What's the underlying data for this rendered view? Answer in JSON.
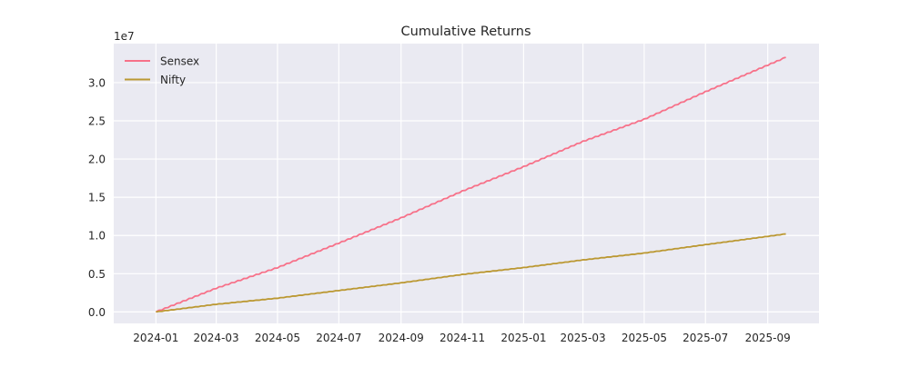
{
  "chart_data": {
    "type": "line",
    "title": "Cumulative Returns",
    "xlabel": "",
    "ylabel": "",
    "y_scale_label": "1e7",
    "x_tick_labels": [
      "2024-01",
      "2024-03",
      "2024-05",
      "2024-07",
      "2024-09",
      "2024-11",
      "2025-01",
      "2025-03",
      "2025-05",
      "2025-07",
      "2025-09"
    ],
    "y_tick_labels": [
      "0.0",
      "0.5",
      "1.0",
      "1.5",
      "2.0",
      "2.5",
      "3.0"
    ],
    "xlim": [
      "2023-11-20",
      "2025-10-22"
    ],
    "ylim": [
      -1500000,
      35100000
    ],
    "grid": true,
    "legend_position": "top-left",
    "series": [
      {
        "name": "Sensex",
        "color": "#f77189",
        "points": [
          [
            "2024-01-01",
            0
          ],
          [
            "2024-03-01",
            3100000
          ],
          [
            "2024-05-01",
            5800000
          ],
          [
            "2024-07-01",
            9000000
          ],
          [
            "2024-09-01",
            12300000
          ],
          [
            "2024-11-01",
            15800000
          ],
          [
            "2025-01-01",
            19000000
          ],
          [
            "2025-03-01",
            22300000
          ],
          [
            "2025-05-01",
            25200000
          ],
          [
            "2025-07-01",
            28800000
          ],
          [
            "2025-09-19",
            33300000
          ]
        ]
      },
      {
        "name": "Nifty",
        "color": "#bb9832",
        "points": [
          [
            "2024-01-01",
            0
          ],
          [
            "2024-03-01",
            1000000
          ],
          [
            "2024-05-01",
            1800000
          ],
          [
            "2024-07-01",
            2800000
          ],
          [
            "2024-09-01",
            3800000
          ],
          [
            "2024-11-01",
            4900000
          ],
          [
            "2025-01-01",
            5800000
          ],
          [
            "2025-03-01",
            6800000
          ],
          [
            "2025-05-01",
            7700000
          ],
          [
            "2025-07-01",
            8800000
          ],
          [
            "2025-09-19",
            10200000
          ]
        ]
      }
    ]
  }
}
